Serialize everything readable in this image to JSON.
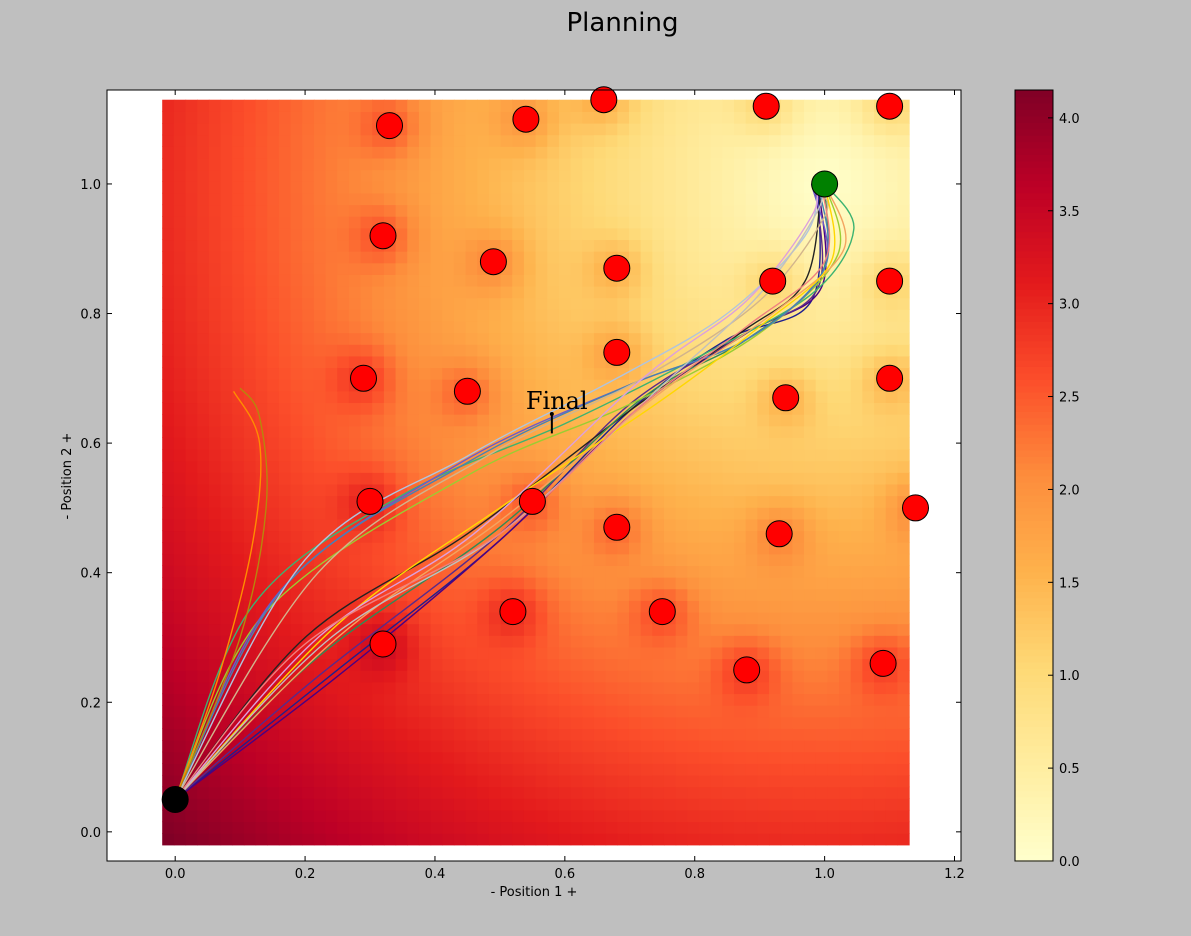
{
  "title": "Planning",
  "chart_data": {
    "type": "heatmap",
    "title": "Planning",
    "xlabel": "- Position 1 +",
    "ylabel": "- Position 2 +",
    "xlim": [
      -0.105,
      1.21
    ],
    "ylim": [
      -0.045,
      1.145
    ],
    "xticks": [
      "0.0",
      "0.2",
      "0.4",
      "0.6",
      "0.8",
      "1.0",
      "1.2"
    ],
    "xtick_values": [
      0.0,
      0.2,
      0.4,
      0.6,
      0.8,
      1.0,
      1.2
    ],
    "yticks": [
      "0.0",
      "0.2",
      "0.4",
      "0.6",
      "0.8",
      "1.0"
    ],
    "ytick_values": [
      0.0,
      0.2,
      0.4,
      0.6,
      0.8,
      1.0
    ],
    "heatmap_extent": {
      "x": [
        -0.02,
        1.13
      ],
      "y": [
        -0.02,
        1.13
      ]
    },
    "colormap": "YlOrRd",
    "colorbar": {
      "min": 0.0,
      "max": 4.15,
      "ticks": [
        "0.0",
        "0.5",
        "1.0",
        "1.5",
        "2.0",
        "2.5",
        "3.0",
        "3.5",
        "4.0"
      ],
      "tick_values": [
        0.0,
        0.5,
        1.0,
        1.5,
        2.0,
        2.5,
        3.0,
        3.5,
        4.0
      ]
    },
    "start": {
      "x": 0.0,
      "y": 0.05,
      "color": "#000000"
    },
    "goal": {
      "x": 1.0,
      "y": 1.0,
      "color": "#008000"
    },
    "obstacles": [
      {
        "x": 0.33,
        "y": 1.09
      },
      {
        "x": 0.54,
        "y": 1.1
      },
      {
        "x": 0.66,
        "y": 1.13
      },
      {
        "x": 0.91,
        "y": 1.12
      },
      {
        "x": 1.1,
        "y": 1.12
      },
      {
        "x": 0.32,
        "y": 0.92
      },
      {
        "x": 0.49,
        "y": 0.88
      },
      {
        "x": 0.68,
        "y": 0.87
      },
      {
        "x": 0.92,
        "y": 0.85
      },
      {
        "x": 1.1,
        "y": 0.85
      },
      {
        "x": 0.68,
        "y": 0.74
      },
      {
        "x": 0.29,
        "y": 0.7
      },
      {
        "x": 0.45,
        "y": 0.68
      },
      {
        "x": 0.94,
        "y": 0.67
      },
      {
        "x": 1.1,
        "y": 0.7
      },
      {
        "x": 0.3,
        "y": 0.51
      },
      {
        "x": 0.55,
        "y": 0.51
      },
      {
        "x": 0.68,
        "y": 0.47
      },
      {
        "x": 0.93,
        "y": 0.46
      },
      {
        "x": 1.14,
        "y": 0.5
      },
      {
        "x": 0.32,
        "y": 0.29
      },
      {
        "x": 0.52,
        "y": 0.34
      },
      {
        "x": 0.75,
        "y": 0.34
      },
      {
        "x": 0.88,
        "y": 0.25
      },
      {
        "x": 1.09,
        "y": 0.26
      }
    ],
    "obstacle_color": "#ff0000",
    "annotation": {
      "text": "Final",
      "x": 0.58,
      "y": 0.615,
      "text_x": 0.54,
      "text_y": 0.665
    },
    "trajectories": [
      {
        "color": "#1f1f8f",
        "points": [
          [
            0.0,
            0.05
          ],
          [
            0.25,
            0.25
          ],
          [
            0.5,
            0.45
          ],
          [
            0.7,
            0.65
          ],
          [
            0.85,
            0.76
          ],
          [
            0.98,
            0.82
          ],
          [
            0.99,
            1.0
          ]
        ]
      },
      {
        "color": "#4b0082",
        "points": [
          [
            0.0,
            0.05
          ],
          [
            0.25,
            0.24
          ],
          [
            0.5,
            0.45
          ],
          [
            0.72,
            0.66
          ],
          [
            0.88,
            0.77
          ],
          [
            0.995,
            0.84
          ],
          [
            0.99,
            1.0
          ]
        ]
      },
      {
        "color": "#5a2a8a",
        "points": [
          [
            0.0,
            0.05
          ],
          [
            0.22,
            0.24
          ],
          [
            0.5,
            0.46
          ],
          [
            0.7,
            0.66
          ],
          [
            0.88,
            0.77
          ],
          [
            0.99,
            0.84
          ],
          [
            0.985,
            1.0
          ]
        ]
      },
      {
        "color": "#222222",
        "points": [
          [
            0.0,
            0.05
          ],
          [
            0.2,
            0.3
          ],
          [
            0.45,
            0.46
          ],
          [
            0.7,
            0.65
          ],
          [
            0.87,
            0.77
          ],
          [
            0.97,
            0.85
          ],
          [
            0.995,
            1.0
          ]
        ]
      },
      {
        "color": "#2e8b57",
        "points": [
          [
            0.0,
            0.05
          ],
          [
            0.22,
            0.27
          ],
          [
            0.5,
            0.47
          ],
          [
            0.72,
            0.67
          ],
          [
            0.88,
            0.76
          ],
          [
            0.995,
            0.86
          ],
          [
            1.0,
            1.0
          ]
        ]
      },
      {
        "color": "#3cb371",
        "points": [
          [
            0.0,
            0.05
          ],
          [
            0.12,
            0.35
          ],
          [
            0.35,
            0.52
          ],
          [
            0.6,
            0.63
          ],
          [
            0.8,
            0.73
          ],
          [
            0.98,
            0.83
          ],
          [
            1.045,
            0.93
          ],
          [
            1.0,
            1.0
          ]
        ]
      },
      {
        "color": "#9acd32",
        "points": [
          [
            0.0,
            0.05
          ],
          [
            0.14,
            0.34
          ],
          [
            0.45,
            0.55
          ],
          [
            0.7,
            0.66
          ],
          [
            0.9,
            0.77
          ],
          [
            1.02,
            0.89
          ],
          [
            1.0,
            1.0
          ]
        ]
      },
      {
        "color": "#6a5acd",
        "points": [
          [
            0.0,
            0.05
          ],
          [
            0.16,
            0.37
          ],
          [
            0.44,
            0.57
          ],
          [
            0.7,
            0.69
          ],
          [
            0.88,
            0.76
          ],
          [
            1.0,
            0.87
          ],
          [
            0.98,
            1.0
          ]
        ]
      },
      {
        "color": "#4682b4",
        "points": [
          [
            0.0,
            0.05
          ],
          [
            0.17,
            0.38
          ],
          [
            0.45,
            0.57
          ],
          [
            0.7,
            0.69
          ],
          [
            0.88,
            0.76
          ],
          [
            1.0,
            0.87
          ],
          [
            0.99,
            1.0
          ]
        ]
      },
      {
        "color": "#b0c4de",
        "points": [
          [
            0.0,
            0.05
          ],
          [
            0.2,
            0.42
          ],
          [
            0.45,
            0.58
          ],
          [
            0.68,
            0.7
          ],
          [
            0.85,
            0.8
          ],
          [
            0.97,
            0.92
          ],
          [
            0.99,
            1.0
          ]
        ]
      },
      {
        "color": "#d2b48c",
        "points": [
          [
            0.0,
            0.05
          ],
          [
            0.22,
            0.4
          ],
          [
            0.48,
            0.58
          ],
          [
            0.72,
            0.7
          ],
          [
            0.9,
            0.82
          ],
          [
            1.0,
            0.95
          ],
          [
            0.99,
            0.99
          ]
        ]
      },
      {
        "color": "#f4a460",
        "points": [
          [
            0.0,
            0.05
          ],
          [
            0.25,
            0.3
          ],
          [
            0.5,
            0.48
          ],
          [
            0.75,
            0.68
          ],
          [
            0.92,
            0.8
          ],
          [
            1.03,
            0.9
          ],
          [
            1.0,
            1.0
          ]
        ]
      },
      {
        "color": "#ffd700",
        "points": [
          [
            0.0,
            0.05
          ],
          [
            0.25,
            0.32
          ],
          [
            0.5,
            0.5
          ],
          [
            0.74,
            0.66
          ],
          [
            0.9,
            0.78
          ],
          [
            1.01,
            0.88
          ],
          [
            1.0,
            1.0
          ]
        ]
      },
      {
        "color": "#dda0dd",
        "points": [
          [
            0.0,
            0.05
          ],
          [
            0.22,
            0.3
          ],
          [
            0.46,
            0.46
          ],
          [
            0.72,
            0.7
          ],
          [
            0.88,
            0.82
          ],
          [
            0.98,
            0.95
          ],
          [
            0.985,
            1.0
          ]
        ]
      },
      {
        "color": "#c0c0c0",
        "points": [
          [
            0.0,
            0.05
          ],
          [
            0.24,
            0.3
          ],
          [
            0.5,
            0.46
          ],
          [
            0.74,
            0.68
          ],
          [
            0.9,
            0.83
          ],
          [
            0.99,
            0.96
          ],
          [
            0.99,
            1.0
          ]
        ]
      },
      {
        "color": "#f08080",
        "points": [
          [
            0.0,
            0.05
          ],
          [
            0.2,
            0.29
          ],
          [
            0.5,
            0.46
          ],
          [
            0.72,
            0.66
          ],
          [
            0.88,
            0.78
          ],
          [
            1.0,
            0.88
          ],
          [
            0.995,
            1.0
          ]
        ]
      },
      {
        "color": "#ff8c00",
        "points": [
          [
            0.0,
            0.05
          ],
          [
            0.07,
            0.25
          ],
          [
            0.12,
            0.45
          ],
          [
            0.13,
            0.6
          ],
          [
            0.09,
            0.68
          ]
        ]
      },
      {
        "color": "#b8860b",
        "points": [
          [
            0.0,
            0.05
          ],
          [
            0.1,
            0.3
          ],
          [
            0.14,
            0.5
          ],
          [
            0.13,
            0.64
          ],
          [
            0.1,
            0.685
          ]
        ]
      }
    ]
  }
}
